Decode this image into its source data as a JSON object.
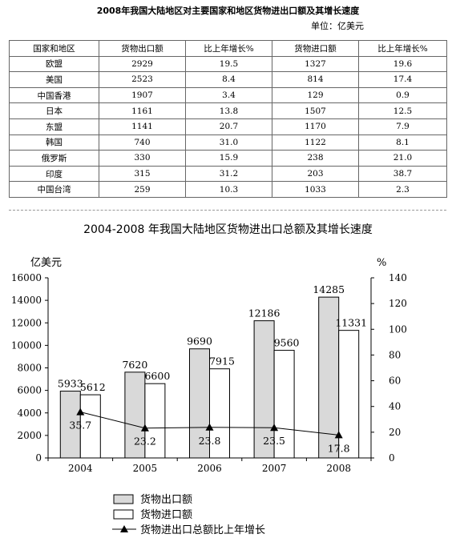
{
  "table": {
    "title": "2008年我国大陆地区对主要国家和地区货物进出口额及其增长速度",
    "unit": "单位：亿美元",
    "headers": [
      "国家和地区",
      "货物出口额",
      "比上年增长%",
      "货物进口额",
      "比上年增长%"
    ],
    "rows": [
      [
        "欧盟",
        "2929",
        "19.5",
        "1327",
        "19.6"
      ],
      [
        "美国",
        "2523",
        "8.4",
        "814",
        "17.4"
      ],
      [
        "中国香港",
        "1907",
        "3.4",
        "129",
        "0.9"
      ],
      [
        "日本",
        "1161",
        "13.8",
        "1507",
        "12.5"
      ],
      [
        "东盟",
        "1141",
        "20.7",
        "1170",
        "7.9"
      ],
      [
        "韩国",
        "740",
        "31.0",
        "1122",
        "8.1"
      ],
      [
        "俄罗斯",
        "330",
        "15.9",
        "238",
        "21.0"
      ],
      [
        "印度",
        "315",
        "31.2",
        "203",
        "38.7"
      ],
      [
        "中国台湾",
        "259",
        "10.3",
        "1033",
        "2.3"
      ]
    ]
  },
  "chart_data": {
    "type": "bar",
    "title": "2004-2008 年我国大陆地区货物进出口总额及其增长速度",
    "ylabel": "亿美元",
    "y2label": "%",
    "categories": [
      "2004",
      "2005",
      "2006",
      "2007",
      "2008"
    ],
    "ylim": [
      0,
      16000
    ],
    "y2lim": [
      0,
      140
    ],
    "yticks": [
      0,
      2000,
      4000,
      6000,
      8000,
      10000,
      12000,
      14000,
      16000
    ],
    "y2ticks": [
      0,
      20,
      40,
      60,
      80,
      100,
      120,
      140
    ],
    "series": [
      {
        "name": "货物出口额",
        "kind": "bar",
        "color": "#d9d9d9",
        "values": [
          5933,
          7620,
          9690,
          12186,
          14285
        ]
      },
      {
        "name": "货物进口额",
        "kind": "bar",
        "color": "#ffffff",
        "values": [
          5612,
          6600,
          7915,
          9560,
          11331
        ]
      },
      {
        "name": "货物进出口总额比上年增长",
        "kind": "line",
        "axis": "right",
        "marker": "triangle",
        "values": [
          35.7,
          23.2,
          23.8,
          23.5,
          17.8
        ]
      }
    ],
    "legend": "bottom",
    "grid": false
  }
}
